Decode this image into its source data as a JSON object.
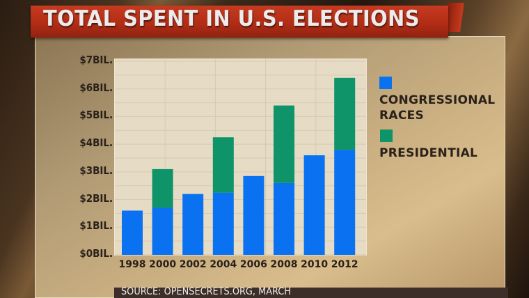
{
  "chart_data": {
    "type": "bar",
    "stacked": true,
    "title": "TOTAL SPENT IN U.S. ELECTIONS",
    "xlabel": "",
    "ylabel": "",
    "categories": [
      "1998",
      "2000",
      "2002",
      "2004",
      "2006",
      "2008",
      "2010",
      "2012"
    ],
    "series": [
      {
        "name": "CONGRESSIONAL RACES",
        "color": "#0a72f0",
        "values": [
          1.6,
          1.7,
          2.2,
          2.25,
          2.85,
          2.6,
          3.6,
          3.8
        ]
      },
      {
        "name": "PRESIDENTIAL",
        "color": "#0e9468",
        "values": [
          0,
          1.4,
          0,
          2.0,
          0,
          2.8,
          0,
          2.6
        ]
      }
    ],
    "ylim": [
      0,
      7
    ],
    "yticks": [
      "$0BIL.",
      "$1BIL.",
      "$2BIL.",
      "$3BIL.",
      "$4BIL.",
      "$5BIL.",
      "$6BIL.",
      "$7BIL."
    ],
    "grid": true,
    "legend_position": "right",
    "source": "SOURCE: OPENSECRETS.ORG, MARCH"
  }
}
